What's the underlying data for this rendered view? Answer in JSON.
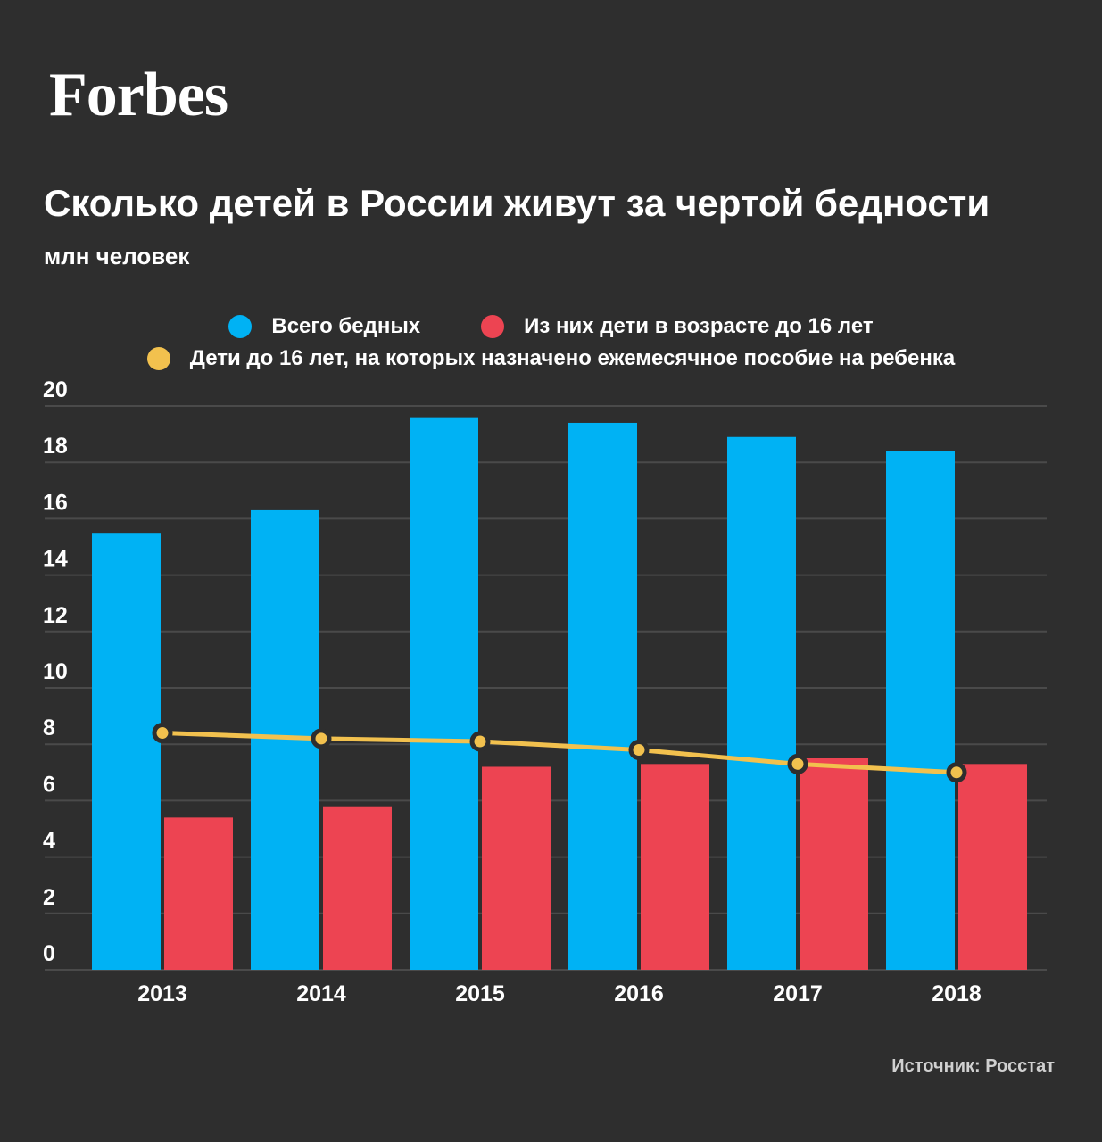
{
  "brand": {
    "logo_text": "Forbes"
  },
  "header": {
    "title": "Сколько детей в России живут за чертой бедности",
    "subtitle": "млн человек"
  },
  "legend": [
    {
      "label": "Всего бедных",
      "color": "#00b2f4"
    },
    {
      "label": "Из них дети в возрасте до 16 лет",
      "color": "#ed4452"
    },
    {
      "label": "Дети до 16 лет, на которых назначено ежемесячное пособие на ребенка",
      "color": "#f2c14e"
    }
  ],
  "chart_data": {
    "type": "bar",
    "title": "Сколько детей в России живут за чертой бедности",
    "ylabel": "млн человек",
    "categories": [
      "2013",
      "2014",
      "2015",
      "2016",
      "2017",
      "2018"
    ],
    "series": [
      {
        "id": "total-poor",
        "name": "Всего бедных",
        "type": "bar",
        "color": "#00b2f4",
        "values": [
          15.5,
          16.3,
          19.6,
          19.4,
          18.9,
          18.4
        ]
      },
      {
        "id": "children-poor",
        "name": "Из них дети в возрасте до 16 лет",
        "type": "bar",
        "color": "#ed4452",
        "values": [
          5.4,
          5.8,
          7.2,
          7.3,
          7.5,
          7.3
        ]
      },
      {
        "id": "children-benefit",
        "name": "Дети до 16 лет, на которых назначено ежемесячное пособие на ребенка",
        "type": "line",
        "color": "#f2c14e",
        "values": [
          8.4,
          8.2,
          8.1,
          7.8,
          7.3,
          7.0
        ]
      }
    ],
    "ylim": [
      0,
      20
    ],
    "yticks": [
      0,
      2,
      4,
      6,
      8,
      10,
      12,
      14,
      16,
      18,
      20
    ],
    "grid": true,
    "legend_position": "top"
  },
  "footer": {
    "source": "Источник: Росстат"
  },
  "colors": {
    "background": "#2e2e2e",
    "grid": "#4a4a4a",
    "text": "#ffffff",
    "source_text": "#d0d0d0"
  }
}
